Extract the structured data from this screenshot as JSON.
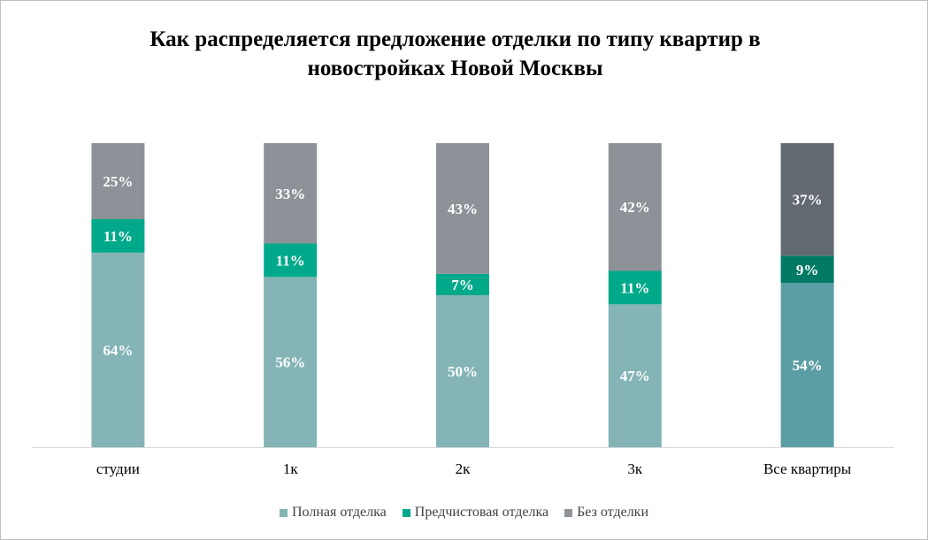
{
  "chart_data": {
    "type": "bar",
    "stacked": true,
    "title": "Как распределяется предложение отделки по типу квартир в новостройках Новой Москвы",
    "title_lines": [
      "Как распределяется предложение отделки по типу квартир в",
      "новостройках Новой Москвы"
    ],
    "xlabel": "",
    "ylabel": "",
    "ylim": [
      0,
      100
    ],
    "grid": false,
    "legend_position": "bottom",
    "categories": [
      "студии",
      "1к",
      "2к",
      "3к",
      "Все квартиры"
    ],
    "series": [
      {
        "name": "Полная отделка",
        "values": [
          64,
          56,
          50,
          47,
          54
        ],
        "labels": [
          "64%",
          "56%",
          "50%",
          "47%",
          "54%"
        ],
        "color": "#84b4b6"
      },
      {
        "name": "Предчистовая отделка",
        "values": [
          11,
          11,
          7,
          11,
          9
        ],
        "labels": [
          "11%",
          "11%",
          "7%",
          "11%",
          "9%"
        ],
        "color": "#00a98a"
      },
      {
        "name": "Без отделки",
        "values": [
          25,
          33,
          43,
          42,
          37
        ],
        "labels": [
          "25%",
          "33%",
          "43%",
          "42%",
          "37%"
        ],
        "color": "#8c9298"
      }
    ],
    "highlight_category_colors": {
      "category": "Все квартиры",
      "colors": [
        "#5a9ea4",
        "#007a64",
        "#636970"
      ]
    }
  }
}
